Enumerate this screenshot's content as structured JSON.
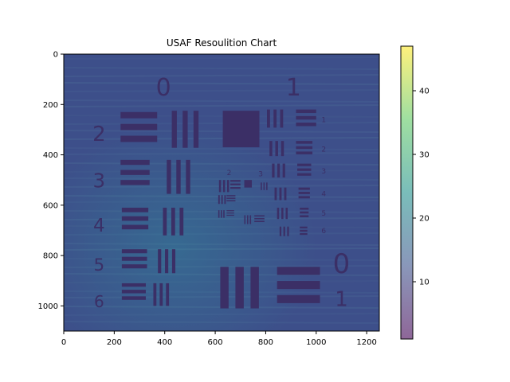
{
  "chart_data": {
    "type": "heatmap",
    "title": "USAF Resoulition Chart",
    "xlabel": "",
    "ylabel": "",
    "xlim": [
      0,
      1250
    ],
    "ylim": [
      1100,
      0
    ],
    "xticks": [
      0,
      200,
      400,
      600,
      800,
      1000,
      1200
    ],
    "yticks": [
      0,
      200,
      400,
      600,
      800,
      1000
    ],
    "colorbar": {
      "range": [
        1,
        47
      ],
      "ticks": [
        10,
        20,
        30,
        40
      ],
      "colormap": "viridis",
      "alpha": 0.6
    },
    "grid": false,
    "target_labels": {
      "group_large_left": [
        "2",
        "3",
        "4",
        "5",
        "6"
      ],
      "group_large_top": [
        "0",
        "1"
      ],
      "group_large_bottom_right": [
        "0",
        "1"
      ],
      "group_right_small": [
        "1",
        "2",
        "3",
        "4",
        "5",
        "6"
      ],
      "center_small": [
        "2",
        "3"
      ]
    },
    "colors": {
      "background_field": "#3d4f8a",
      "bars": "#3b2f66",
      "axes_frame": "#000000"
    }
  }
}
